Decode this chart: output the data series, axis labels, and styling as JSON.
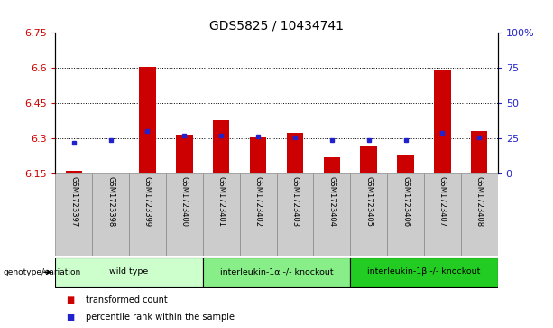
{
  "title": "GDS5825 / 10434741",
  "samples": [
    "GSM1723397",
    "GSM1723398",
    "GSM1723399",
    "GSM1723400",
    "GSM1723401",
    "GSM1723402",
    "GSM1723403",
    "GSM1723404",
    "GSM1723405",
    "GSM1723406",
    "GSM1723407",
    "GSM1723408"
  ],
  "bar_values": [
    6.162,
    6.156,
    6.605,
    6.315,
    6.38,
    6.305,
    6.325,
    6.22,
    6.265,
    6.228,
    6.592,
    6.332
  ],
  "dot_values": [
    6.284,
    6.293,
    6.332,
    6.313,
    6.314,
    6.309,
    6.305,
    6.294,
    6.294,
    6.293,
    6.326,
    6.304
  ],
  "ymin": 6.15,
  "ymax": 6.75,
  "y_ticks_left": [
    6.15,
    6.3,
    6.45,
    6.6,
    6.75
  ],
  "y_ticks_right_labels": [
    "0",
    "25",
    "50",
    "75",
    "100%"
  ],
  "bar_color": "#cc0000",
  "dot_color": "#2222cc",
  "groups": [
    {
      "label": "wild type",
      "start": 0,
      "end": 3,
      "color": "#ccffcc"
    },
    {
      "label": "interleukin-1α -/- knockout",
      "start": 4,
      "end": 7,
      "color": "#88ee88"
    },
    {
      "label": "interleukin-1β -/- knockout",
      "start": 8,
      "end": 11,
      "color": "#22cc22"
    }
  ],
  "legend_items": [
    {
      "label": "transformed count",
      "color": "#cc0000"
    },
    {
      "label": "percentile rank within the sample",
      "color": "#2222cc"
    }
  ],
  "genotype_label": "genotype/variation",
  "title_fontsize": 10,
  "tick_fontsize": 8,
  "sample_fontsize": 6,
  "bar_bottom": 6.15,
  "bar_width": 0.45
}
